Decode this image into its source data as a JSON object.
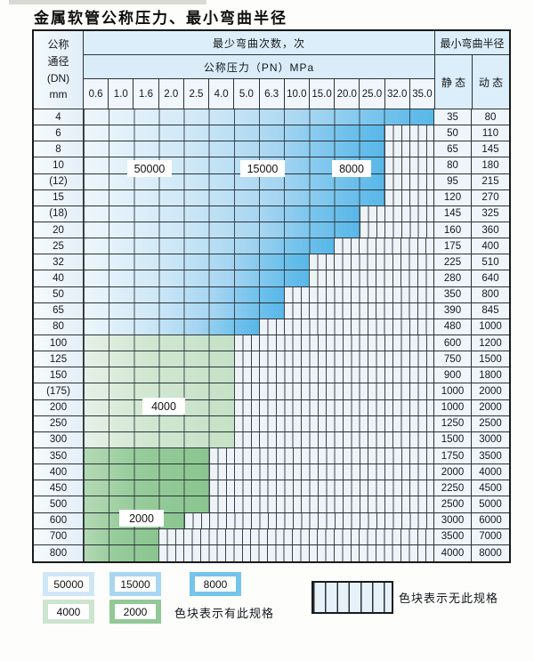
{
  "title": "金属软管公称压力、最小弯曲半径",
  "table": {
    "dn_header_lines": [
      "公称",
      "通径",
      "(DN)",
      "mm"
    ],
    "cycles_header": "最少弯曲次数，次",
    "pn_header": "公称压力（PN）MPa",
    "radius_header": "最小弯曲半径",
    "static_header": "静 态",
    "dynamic_header": "动 态",
    "pn_columns": [
      "0.6",
      "1.0",
      "1.6",
      "2.0",
      "2.5",
      "4.0",
      "5.0",
      "6.3",
      "10.0",
      "15.0",
      "20.0",
      "25.0",
      "32.0",
      "35.0"
    ],
    "rows": [
      {
        "dn": "4",
        "colored_cols": 14,
        "max_pn": "35.0",
        "zone": "blue",
        "static": "35",
        "dynamic": "80"
      },
      {
        "dn": "6",
        "colored_cols": 12,
        "max_pn": "25.0",
        "zone": "blue",
        "static": "50",
        "dynamic": "110"
      },
      {
        "dn": "8",
        "colored_cols": 12,
        "max_pn": "25.0",
        "zone": "blue",
        "static": "65",
        "dynamic": "145"
      },
      {
        "dn": "10",
        "colored_cols": 12,
        "max_pn": "25.0",
        "zone": "blue",
        "static": "80",
        "dynamic": "180"
      },
      {
        "dn": "(12)",
        "colored_cols": 12,
        "max_pn": "25.0",
        "zone": "blue",
        "static": "95",
        "dynamic": "215"
      },
      {
        "dn": "15",
        "colored_cols": 12,
        "max_pn": "25.0",
        "zone": "blue",
        "static": "120",
        "dynamic": "270"
      },
      {
        "dn": "(18)",
        "colored_cols": 11,
        "max_pn": "20.0",
        "zone": "blue",
        "static": "145",
        "dynamic": "325"
      },
      {
        "dn": "20",
        "colored_cols": 11,
        "max_pn": "20.0",
        "zone": "blue",
        "static": "160",
        "dynamic": "360"
      },
      {
        "dn": "25",
        "colored_cols": 10,
        "max_pn": "15.0",
        "zone": "blue",
        "static": "175",
        "dynamic": "400"
      },
      {
        "dn": "32",
        "colored_cols": 9,
        "max_pn": "10.0",
        "zone": "blue",
        "static": "225",
        "dynamic": "510"
      },
      {
        "dn": "40",
        "colored_cols": 9,
        "max_pn": "10.0",
        "zone": "blue",
        "static": "280",
        "dynamic": "640"
      },
      {
        "dn": "50",
        "colored_cols": 8,
        "max_pn": "6.3",
        "zone": "blue",
        "static": "350",
        "dynamic": "800"
      },
      {
        "dn": "65",
        "colored_cols": 8,
        "max_pn": "6.3",
        "zone": "blue",
        "static": "390",
        "dynamic": "845"
      },
      {
        "dn": "80",
        "colored_cols": 7,
        "max_pn": "5.0",
        "zone": "blue",
        "static": "480",
        "dynamic": "1000"
      },
      {
        "dn": "100",
        "colored_cols": 6,
        "max_pn": "4.0",
        "zone": "green_light",
        "static": "600",
        "dynamic": "1200"
      },
      {
        "dn": "125",
        "colored_cols": 6,
        "max_pn": "4.0",
        "zone": "green_light",
        "static": "750",
        "dynamic": "1500"
      },
      {
        "dn": "150",
        "colored_cols": 6,
        "max_pn": "4.0",
        "zone": "green_light",
        "static": "900",
        "dynamic": "1800"
      },
      {
        "dn": "(175)",
        "colored_cols": 6,
        "max_pn": "4.0",
        "zone": "green_light",
        "static": "1000",
        "dynamic": "2000"
      },
      {
        "dn": "200",
        "colored_cols": 6,
        "max_pn": "4.0",
        "zone": "green_light",
        "static": "1000",
        "dynamic": "2000"
      },
      {
        "dn": "250",
        "colored_cols": 6,
        "max_pn": "4.0",
        "zone": "green_light",
        "static": "1250",
        "dynamic": "2500"
      },
      {
        "dn": "300",
        "colored_cols": 6,
        "max_pn": "4.0",
        "zone": "green_light",
        "static": "1500",
        "dynamic": "3000"
      },
      {
        "dn": "350",
        "colored_cols": 5,
        "max_pn": "2.5",
        "zone": "green_dark",
        "static": "1750",
        "dynamic": "3500"
      },
      {
        "dn": "400",
        "colored_cols": 5,
        "max_pn": "2.5",
        "zone": "green_dark",
        "static": "2000",
        "dynamic": "4000"
      },
      {
        "dn": "450",
        "colored_cols": 5,
        "max_pn": "2.5",
        "zone": "green_dark",
        "static": "2250",
        "dynamic": "4500"
      },
      {
        "dn": "500",
        "colored_cols": 5,
        "max_pn": "2.5",
        "zone": "green_dark",
        "static": "2500",
        "dynamic": "5000"
      },
      {
        "dn": "600",
        "colored_cols": 4,
        "max_pn": "2.0",
        "zone": "green_dark",
        "static": "3000",
        "dynamic": "6000"
      },
      {
        "dn": "700",
        "colored_cols": 3,
        "max_pn": "1.6",
        "zone": "green_dark",
        "static": "3500",
        "dynamic": "7000"
      },
      {
        "dn": "800",
        "colored_cols": 3,
        "max_pn": "1.6",
        "zone": "green_dark",
        "static": "4000",
        "dynamic": "8000"
      }
    ],
    "overlay_labels": [
      {
        "text": "50000"
      },
      {
        "text": "15000"
      },
      {
        "text": "8000"
      },
      {
        "text": "4000"
      },
      {
        "text": "2000"
      }
    ]
  },
  "legend": {
    "items": [
      {
        "cycles": "50000",
        "color": "#cfe6f6"
      },
      {
        "cycles": "15000",
        "color": "#a9d6f0"
      },
      {
        "cycles": "8000",
        "color": "#74c4ec"
      },
      {
        "cycles": "4000",
        "color": "#cde5ce"
      },
      {
        "cycles": "2000",
        "color": "#92c997"
      }
    ],
    "has_spec_text": "色块表示有此规格",
    "no_spec_text": "色块表示无此规格"
  },
  "colors": {
    "cycle_50000": "#cfe6f6",
    "cycle_15000": "#a9d6f0",
    "cycle_8000": "#74c4ec",
    "cycle_4000": "#cde5ce",
    "cycle_2000": "#92c997",
    "hatch_background": "#eef3f8",
    "header_background": "#d9ecf8"
  }
}
